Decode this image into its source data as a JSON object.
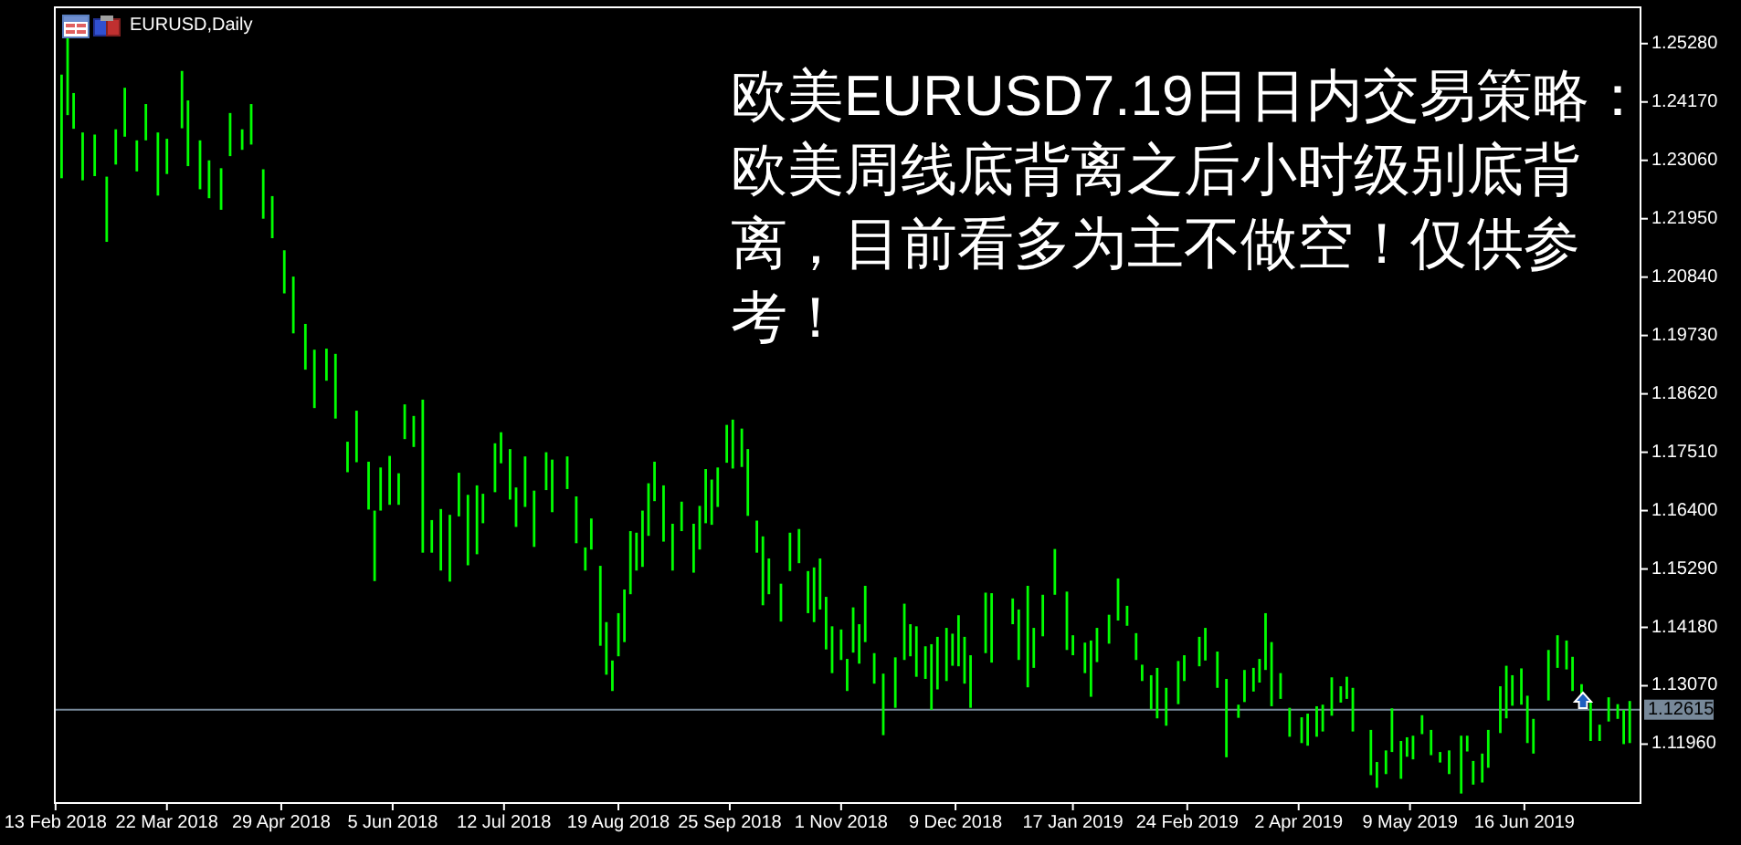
{
  "chart_data": {
    "type": "bar",
    "title": "EURUSD,Daily",
    "color": "#00ff00",
    "x": [
      "2018-02-15",
      "2018-02-17",
      "2018-02-19",
      "2018-02-22",
      "2018-02-26",
      "2018-03-02",
      "2018-03-05",
      "2018-03-08",
      "2018-03-12",
      "2018-03-15",
      "2018-03-19",
      "2018-03-22",
      "2018-03-27",
      "2018-03-29",
      "2018-04-02",
      "2018-04-05",
      "2018-04-09",
      "2018-04-12",
      "2018-04-16",
      "2018-04-19",
      "2018-04-23",
      "2018-04-26",
      "2018-04-30",
      "2018-05-03",
      "2018-05-07",
      "2018-05-10",
      "2018-05-14",
      "2018-05-17",
      "2018-05-21",
      "2018-05-24",
      "2018-05-28",
      "2018-05-30",
      "2018-06-01",
      "2018-06-04",
      "2018-06-07",
      "2018-06-09",
      "2018-06-12",
      "2018-06-15",
      "2018-06-18",
      "2018-06-21",
      "2018-06-24",
      "2018-06-27",
      "2018-06-30",
      "2018-07-03",
      "2018-07-05",
      "2018-07-09",
      "2018-07-11",
      "2018-07-14",
      "2018-07-16",
      "2018-07-19",
      "2018-07-22",
      "2018-07-26",
      "2018-07-28",
      "2018-08-02",
      "2018-08-05",
      "2018-08-08",
      "2018-08-10",
      "2018-08-13",
      "2018-08-15",
      "2018-08-17",
      "2018-08-19",
      "2018-08-21",
      "2018-08-23",
      "2018-08-25",
      "2018-08-27",
      "2018-08-29",
      "2018-08-31",
      "2018-09-03",
      "2018-09-06",
      "2018-09-09",
      "2018-09-13",
      "2018-09-15",
      "2018-09-17",
      "2018-09-19",
      "2018-09-21",
      "2018-09-24",
      "2018-09-26",
      "2018-09-29",
      "2018-10-01",
      "2018-10-04",
      "2018-10-06",
      "2018-10-08",
      "2018-10-12",
      "2018-10-15",
      "2018-10-18",
      "2018-10-21",
      "2018-10-23",
      "2018-10-25",
      "2018-10-27",
      "2018-10-29",
      "2018-11-01",
      "2018-11-03",
      "2018-11-05",
      "2018-11-07",
      "2018-11-09",
      "2018-11-12",
      "2018-11-15",
      "2018-11-19",
      "2018-11-22",
      "2018-11-24",
      "2018-11-26",
      "2018-11-29",
      "2018-12-01",
      "2018-12-03",
      "2018-12-06",
      "2018-12-08",
      "2018-12-10",
      "2018-12-12",
      "2018-12-14",
      "2018-12-19",
      "2018-12-21",
      "2018-12-28",
      "2018-12-30",
      "2019-01-02",
      "2019-01-04",
      "2019-01-07",
      "2019-01-11",
      "2019-01-15",
      "2019-01-17",
      "2019-01-21",
      "2019-01-23",
      "2019-01-25",
      "2019-01-29",
      "2019-02-01",
      "2019-02-04",
      "2019-02-07",
      "2019-02-09",
      "2019-02-12",
      "2019-02-14",
      "2019-02-17",
      "2019-02-21",
      "2019-02-23",
      "2019-02-28",
      "2019-03-02",
      "2019-03-06",
      "2019-03-09",
      "2019-03-13",
      "2019-03-15",
      "2019-03-18",
      "2019-03-20",
      "2019-03-22",
      "2019-03-24",
      "2019-03-27",
      "2019-03-30",
      "2019-04-03",
      "2019-04-05",
      "2019-04-08",
      "2019-04-10",
      "2019-04-13",
      "2019-04-16",
      "2019-04-18",
      "2019-04-20",
      "2019-04-26",
      "2019-04-28",
      "2019-05-01",
      "2019-05-03",
      "2019-05-06",
      "2019-05-08",
      "2019-05-10",
      "2019-05-13",
      "2019-05-16",
      "2019-05-19",
      "2019-05-22",
      "2019-05-26",
      "2019-05-28",
      "2019-05-30",
      "2019-06-02",
      "2019-06-04",
      "2019-06-08",
      "2019-06-10",
      "2019-06-12",
      "2019-06-15",
      "2019-06-17",
      "2019-06-19",
      "2019-06-24",
      "2019-06-27",
      "2019-06-30",
      "2019-07-02",
      "2019-07-05",
      "2019-07-08",
      "2019-07-11",
      "2019-07-14",
      "2019-07-17",
      "2019-07-19",
      "2019-07-21"
    ],
    "base": [
      1.2272,
      1.2392,
      1.2366,
      1.2268,
      1.2276,
      1.2151,
      1.2298,
      1.2351,
      1.2285,
      1.2344,
      1.2239,
      1.228,
      1.2367,
      1.2295,
      1.2251,
      1.2234,
      1.2212,
      1.2314,
      1.2326,
      1.2336,
      1.2195,
      1.2158,
      1.2053,
      1.1977,
      1.1908,
      1.1835,
      1.1887,
      1.1815,
      1.1713,
      1.1732,
      1.1642,
      1.1506,
      1.164,
      1.1651,
      1.1651,
      1.1776,
      1.1761,
      1.156,
      1.156,
      1.1526,
      1.1505,
      1.1629,
      1.1536,
      1.1557,
      1.1616,
      1.1675,
      1.173,
      1.1661,
      1.1609,
      1.1647,
      1.1571,
      1.1679,
      1.1637,
      1.1681,
      1.1578,
      1.1526,
      1.1566,
      1.1383,
      1.1328,
      1.1297,
      1.1363,
      1.139,
      1.1481,
      1.1526,
      1.1533,
      1.1592,
      1.1658,
      1.1581,
      1.1526,
      1.1601,
      1.1522,
      1.1566,
      1.1616,
      1.1613,
      1.1647,
      1.1731,
      1.172,
      1.1723,
      1.163,
      1.156,
      1.146,
      1.1481,
      1.1429,
      1.1525,
      1.154,
      1.1445,
      1.1428,
      1.1452,
      1.1376,
      1.1331,
      1.1356,
      1.1297,
      1.137,
      1.1349,
      1.139,
      1.1311,
      1.1213,
      1.1265,
      1.1356,
      1.1363,
      1.1324,
      1.132,
      1.1261,
      1.13,
      1.1316,
      1.1345,
      1.1344,
      1.1311,
      1.1265,
      1.1369,
      1.1351,
      1.1424,
      1.1356,
      1.1304,
      1.1341,
      1.1401,
      1.148,
      1.1375,
      1.1365,
      1.1331,
      1.1286,
      1.1352,
      1.1387,
      1.1431,
      1.1421,
      1.1356,
      1.1316,
      1.1262,
      1.1245,
      1.1231,
      1.1272,
      1.1316,
      1.1344,
      1.1355,
      1.1303,
      1.1171,
      1.1246,
      1.1276,
      1.1296,
      1.1313,
      1.1337,
      1.1268,
      1.1282,
      1.121,
      1.1198,
      1.1193,
      1.121,
      1.122,
      1.125,
      1.1275,
      1.1282,
      1.122,
      1.1137,
      1.1113,
      1.1139,
      1.1181,
      1.113,
      1.1172,
      1.1167,
      1.1215,
      1.1175,
      1.1161,
      1.1139,
      1.1102,
      1.1182,
      1.1119,
      1.1123,
      1.1151,
      1.1217,
      1.1245,
      1.1269,
      1.1271,
      1.1198,
      1.1178,
      1.1279,
      1.1341,
      1.1338,
      1.1297,
      1.1269,
      1.1202,
      1.1202,
      1.1239,
      1.1244,
      1.1196,
      1.1198
    ],
    "values": [
      0.0197,
      0.0148,
      0.0068,
      0.0091,
      0.0079,
      0.0124,
      0.0067,
      0.0093,
      0.0059,
      0.0069,
      0.012,
      0.0067,
      0.0109,
      0.0125,
      0.0093,
      0.0072,
      0.0079,
      0.0082,
      0.0039,
      0.0077,
      0.0094,
      0.008,
      0.0082,
      0.0108,
      0.0087,
      0.0111,
      0.0061,
      0.0123,
      0.0058,
      0.0098,
      0.0091,
      0.0134,
      0.0082,
      0.0093,
      0.006,
      0.0066,
      0.0059,
      0.0291,
      0.0062,
      0.0117,
      0.0127,
      0.0083,
      0.0134,
      0.0131,
      0.0056,
      0.0093,
      0.0059,
      0.0096,
      0.0075,
      0.0096,
      0.0107,
      0.0072,
      0.01,
      0.0062,
      0.0089,
      0.0044,
      0.0059,
      0.0152,
      0.01,
      0.0058,
      0.0082,
      0.01,
      0.012,
      0.0072,
      0.0107,
      0.01,
      0.0075,
      0.0107,
      0.0089,
      0.0056,
      0.0093,
      0.0083,
      0.0103,
      0.0086,
      0.0075,
      0.0072,
      0.0093,
      0.0073,
      0.0127,
      0.0061,
      0.0131,
      0.0068,
      0.0072,
      0.0073,
      0.0065,
      0.008,
      0.0104,
      0.0097,
      0.01,
      0.0089,
      0.0058,
      0.0061,
      0.0086,
      0.0075,
      0.0107,
      0.0058,
      0.0117,
      0.0096,
      0.0107,
      0.0061,
      0.0096,
      0.0062,
      0.0125,
      0.01,
      0.0101,
      0.0061,
      0.0097,
      0.0089,
      0.01,
      0.0115,
      0.0132,
      0.0049,
      0.0096,
      0.0193,
      0.0076,
      0.0079,
      0.0087,
      0.0111,
      0.0038,
      0.0058,
      0.0107,
      0.0065,
      0.0055,
      0.008,
      0.0038,
      0.0051,
      0.0031,
      0.0065,
      0.0096,
      0.0072,
      0.0082,
      0.0049,
      0.0056,
      0.0062,
      0.0069,
      0.0149,
      0.0025,
      0.0061,
      0.0045,
      0.0045,
      0.0108,
      0.0122,
      0.0049,
      0.0055,
      0.0049,
      0.0061,
      0.0058,
      0.0051,
      0.0073,
      0.0031,
      0.0042,
      0.0083,
      0.0086,
      0.0049,
      0.0045,
      0.0083,
      0.0072,
      0.0037,
      0.0045,
      0.0036,
      0.0048,
      0.002,
      0.0045,
      0.011,
      0.003,
      0.0045,
      0.0055,
      0.0072,
      0.0089,
      0.01,
      0.0058,
      0.0069,
      0.009,
      0.0066,
      0.0096,
      0.0062,
      0.0055,
      0.0065,
      0.0041,
      0.0073,
      0.0031,
      0.0046,
      0.0028,
      0.0065,
      0.008
    ],
    "xlim": [
      "2018-02-12T18:00",
      "2019-07-24T14:00"
    ],
    "xticks": [
      {
        "value": "2018-02-13",
        "label": "13 Feb 2018"
      },
      {
        "value": "2018-03-22",
        "label": "22 Mar 2018"
      },
      {
        "value": "2018-04-29",
        "label": "29 Apr 2018"
      },
      {
        "value": "2018-06-05",
        "label": "5 Jun 2018"
      },
      {
        "value": "2018-07-12",
        "label": "12 Jul 2018"
      },
      {
        "value": "2018-08-19",
        "label": "19 Aug 2018"
      },
      {
        "value": "2018-09-25",
        "label": "25 Sep 2018"
      },
      {
        "value": "2018-11-01",
        "label": "1 Nov 2018"
      },
      {
        "value": "2018-12-09",
        "label": "9 Dec 2018"
      },
      {
        "value": "2019-01-17",
        "label": "17 Jan 2019"
      },
      {
        "value": "2019-02-24",
        "label": "24 Feb 2019"
      },
      {
        "value": "2019-04-02",
        "label": "2 Apr 2019"
      },
      {
        "value": "2019-05-09",
        "label": "9 May 2019"
      },
      {
        "value": "2019-06-16",
        "label": "16 Jun 2019"
      }
    ],
    "ylim": [
      1.1084,
      1.2597
    ],
    "yticks": [
      {
        "value": 1.2528,
        "label": "1.25280"
      },
      {
        "value": 1.2417,
        "label": "1.24170"
      },
      {
        "value": 1.2306,
        "label": "1.23060"
      },
      {
        "value": 1.2195,
        "label": "1.21950"
      },
      {
        "value": 1.2084,
        "label": "1.20840"
      },
      {
        "value": 1.1973,
        "label": "1.19730"
      },
      {
        "value": 1.1862,
        "label": "1.18620"
      },
      {
        "value": 1.1751,
        "label": "1.17510"
      },
      {
        "value": 1.164,
        "label": "1.16400"
      },
      {
        "value": 1.1529,
        "label": "1.15290"
      },
      {
        "value": 1.1418,
        "label": "1.14180"
      },
      {
        "value": 1.1307,
        "label": "1.13070"
      },
      {
        "value": 1.1196,
        "label": "1.11960"
      }
    ],
    "ref_lines": [
      {
        "axis": "y",
        "value": 1.12615,
        "label": "1.12615",
        "color": "#778899"
      }
    ],
    "annotations": [
      "欧美EURUSD7.19日日内交易策略：欧美周线底背离之后小时级别底背离，目前看多为主不做空！仅供参考！"
    ]
  }
}
